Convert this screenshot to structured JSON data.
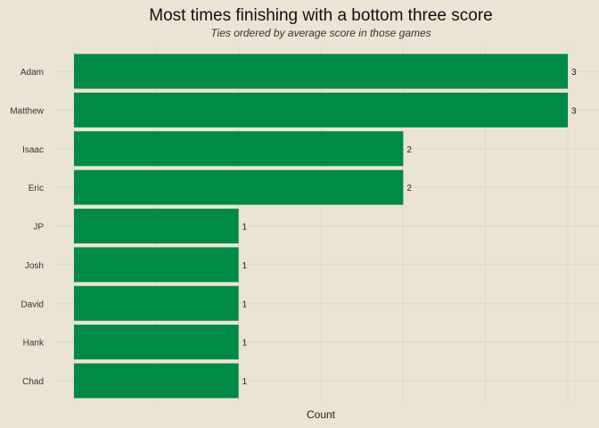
{
  "chart_data": {
    "type": "bar",
    "orientation": "horizontal",
    "title": "Most times finishing with a bottom three score",
    "subtitle": "Ties ordered by average score in those games",
    "xlabel": "Count",
    "ylabel": "",
    "categories": [
      "Adam",
      "Matthew",
      "Isaac",
      "Eric",
      "JP",
      "Josh",
      "David",
      "Hank",
      "Chad"
    ],
    "values": [
      3,
      3,
      2,
      2,
      1,
      1,
      1,
      1,
      1
    ],
    "data_labels": [
      "3",
      "3",
      "2",
      "2",
      "1",
      "1",
      "1",
      "1",
      "1"
    ],
    "xlim": [
      0,
      3
    ],
    "grid": true,
    "legend": "none",
    "bar_color": "#008a45",
    "background_color": "#ebe4d4",
    "grid_color": "#dcd5c6"
  }
}
